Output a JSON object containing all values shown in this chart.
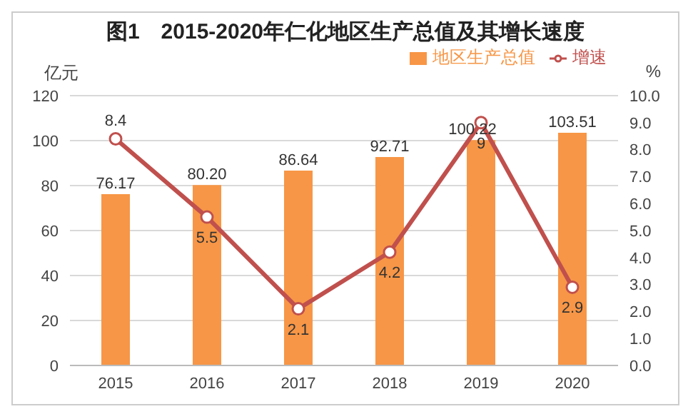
{
  "chart_data": {
    "title": "图1　2015-2020年仁化地区生产总值及其增长速度",
    "ylabel": "亿元",
    "y2label": "%",
    "categories": [
      "2015",
      "2016",
      "2017",
      "2018",
      "2019",
      "2020"
    ],
    "series": [
      {
        "name": "地区生产总值",
        "color": "#f79646",
        "values": [
          76.17,
          80.2,
          86.64,
          92.71,
          100.22,
          103.51
        ],
        "value_labels": [
          "76.17",
          "80.20",
          "86.64",
          "92.71",
          "100.22",
          "103.51"
        ]
      },
      {
        "name": "增速",
        "type": "line",
        "axis": "y2",
        "color": "#c0504d",
        "marker": "circle",
        "values": [
          8.4,
          5.5,
          2.1,
          4.2,
          9,
          2.9
        ],
        "value_labels": [
          "8.4",
          "5.5",
          "2.1",
          "4.2",
          "9",
          "2.9"
        ]
      }
    ],
    "type": "bar",
    "ylim": [
      0,
      120
    ],
    "yticks": [
      0,
      20,
      40,
      60,
      80,
      100,
      120
    ],
    "y2lim": [
      0,
      10
    ],
    "y2ticks": [
      {
        "value": 0,
        "label": "0.0"
      },
      {
        "value": 1,
        "label": "1.0"
      },
      {
        "value": 2,
        "label": "2.0"
      },
      {
        "value": 3,
        "label": "3.0"
      },
      {
        "value": 4,
        "label": "4.0"
      },
      {
        "value": 5,
        "label": "5.0"
      },
      {
        "value": 6,
        "label": "6.0"
      },
      {
        "value": 7,
        "label": "7.0"
      },
      {
        "value": 8,
        "label": "8.0"
      },
      {
        "value": 9,
        "label": "9.0"
      },
      {
        "value": 10,
        "label": "10.0"
      }
    ],
    "grid": "y",
    "legend": "top right"
  }
}
